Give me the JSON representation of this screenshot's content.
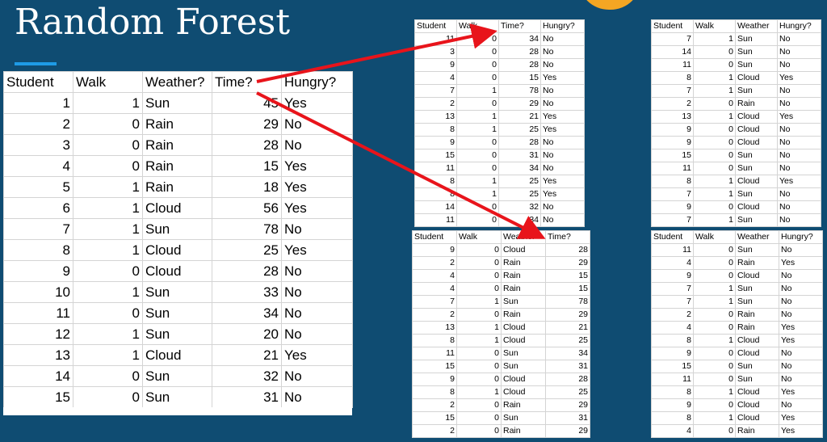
{
  "title": "Random Forest",
  "main_table": {
    "headers": [
      "Student",
      "Walk",
      "Weather?",
      "Time?",
      "Hungry?"
    ],
    "rows": [
      [
        "1",
        "1",
        "Sun",
        "45",
        "Yes"
      ],
      [
        "2",
        "0",
        "Rain",
        "29",
        "No"
      ],
      [
        "3",
        "0",
        "Rain",
        "28",
        "No"
      ],
      [
        "4",
        "0",
        "Rain",
        "15",
        "Yes"
      ],
      [
        "5",
        "1",
        "Rain",
        "18",
        "Yes"
      ],
      [
        "6",
        "1",
        "Cloud",
        "56",
        "Yes"
      ],
      [
        "7",
        "1",
        "Sun",
        "78",
        "No"
      ],
      [
        "8",
        "1",
        "Cloud",
        "25",
        "Yes"
      ],
      [
        "9",
        "0",
        "Cloud",
        "28",
        "No"
      ],
      [
        "10",
        "1",
        "Sun",
        "33",
        "No"
      ],
      [
        "11",
        "0",
        "Sun",
        "34",
        "No"
      ],
      [
        "12",
        "1",
        "Sun",
        "20",
        "No"
      ],
      [
        "13",
        "1",
        "Cloud",
        "21",
        "Yes"
      ],
      [
        "14",
        "0",
        "Sun",
        "32",
        "No"
      ],
      [
        "15",
        "0",
        "Sun",
        "31",
        "No"
      ]
    ]
  },
  "table_a": {
    "headers": [
      "Student",
      "Walk",
      "Time?",
      "Hungry?"
    ],
    "rows": [
      [
        "11",
        "0",
        "34",
        "No"
      ],
      [
        "3",
        "0",
        "28",
        "No"
      ],
      [
        "9",
        "0",
        "28",
        "No"
      ],
      [
        "4",
        "0",
        "15",
        "Yes"
      ],
      [
        "7",
        "1",
        "78",
        "No"
      ],
      [
        "2",
        "0",
        "29",
        "No"
      ],
      [
        "13",
        "1",
        "21",
        "Yes"
      ],
      [
        "8",
        "1",
        "25",
        "Yes"
      ],
      [
        "9",
        "0",
        "28",
        "No"
      ],
      [
        "15",
        "0",
        "31",
        "No"
      ],
      [
        "11",
        "0",
        "34",
        "No"
      ],
      [
        "8",
        "1",
        "25",
        "Yes"
      ],
      [
        "8",
        "1",
        "25",
        "Yes"
      ],
      [
        "14",
        "0",
        "32",
        "No"
      ],
      [
        "11",
        "0",
        "34",
        "No"
      ]
    ]
  },
  "table_b": {
    "headers": [
      "Student",
      "Walk",
      "Weather",
      "Hungry?"
    ],
    "rows": [
      [
        "7",
        "1",
        "Sun",
        "No"
      ],
      [
        "14",
        "0",
        "Sun",
        "No"
      ],
      [
        "11",
        "0",
        "Sun",
        "No"
      ],
      [
        "8",
        "1",
        "Cloud",
        "Yes"
      ],
      [
        "7",
        "1",
        "Sun",
        "No"
      ],
      [
        "2",
        "0",
        "Rain",
        "No"
      ],
      [
        "13",
        "1",
        "Cloud",
        "Yes"
      ],
      [
        "9",
        "0",
        "Cloud",
        "No"
      ],
      [
        "9",
        "0",
        "Cloud",
        "No"
      ],
      [
        "15",
        "0",
        "Sun",
        "No"
      ],
      [
        "11",
        "0",
        "Sun",
        "No"
      ],
      [
        "8",
        "1",
        "Cloud",
        "Yes"
      ],
      [
        "7",
        "1",
        "Sun",
        "No"
      ],
      [
        "9",
        "0",
        "Cloud",
        "No"
      ],
      [
        "7",
        "1",
        "Sun",
        "No"
      ]
    ]
  },
  "table_c": {
    "headers": [
      "Student",
      "Walk",
      "Weather",
      "Time?"
    ],
    "rows": [
      [
        "9",
        "0",
        "Cloud",
        "28"
      ],
      [
        "2",
        "0",
        "Rain",
        "29"
      ],
      [
        "4",
        "0",
        "Rain",
        "15"
      ],
      [
        "4",
        "0",
        "Rain",
        "15"
      ],
      [
        "7",
        "1",
        "Sun",
        "78"
      ],
      [
        "2",
        "0",
        "Rain",
        "29"
      ],
      [
        "13",
        "1",
        "Cloud",
        "21"
      ],
      [
        "8",
        "1",
        "Cloud",
        "25"
      ],
      [
        "11",
        "0",
        "Sun",
        "34"
      ],
      [
        "15",
        "0",
        "Sun",
        "31"
      ],
      [
        "9",
        "0",
        "Cloud",
        "28"
      ],
      [
        "8",
        "1",
        "Cloud",
        "25"
      ],
      [
        "2",
        "0",
        "Rain",
        "29"
      ],
      [
        "15",
        "0",
        "Sun",
        "31"
      ],
      [
        "2",
        "0",
        "Rain",
        "29"
      ]
    ]
  },
  "table_d": {
    "headers": [
      "Student",
      "Walk",
      "Weather",
      "Hungry?"
    ],
    "rows": [
      [
        "11",
        "0",
        "Sun",
        "No"
      ],
      [
        "4",
        "0",
        "Rain",
        "Yes"
      ],
      [
        "9",
        "0",
        "Cloud",
        "No"
      ],
      [
        "7",
        "1",
        "Sun",
        "No"
      ],
      [
        "7",
        "1",
        "Sun",
        "No"
      ],
      [
        "2",
        "0",
        "Rain",
        "No"
      ],
      [
        "4",
        "0",
        "Rain",
        "Yes"
      ],
      [
        "8",
        "1",
        "Cloud",
        "Yes"
      ],
      [
        "9",
        "0",
        "Cloud",
        "No"
      ],
      [
        "15",
        "0",
        "Sun",
        "No"
      ],
      [
        "11",
        "0",
        "Sun",
        "No"
      ],
      [
        "8",
        "1",
        "Cloud",
        "Yes"
      ],
      [
        "9",
        "0",
        "Cloud",
        "No"
      ],
      [
        "8",
        "1",
        "Cloud",
        "Yes"
      ],
      [
        "4",
        "0",
        "Rain",
        "Yes"
      ]
    ]
  },
  "colors": {
    "background": "#0f4c72",
    "arrow": "#e8141b",
    "accent": "#1e9be6",
    "orange": "#f4a623"
  }
}
